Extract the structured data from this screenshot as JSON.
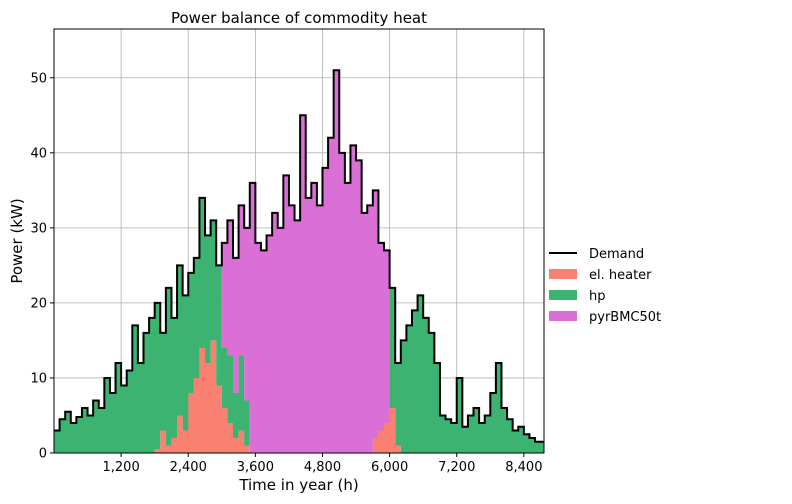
{
  "chart_data": {
    "type": "area",
    "title": "Power balance of commodity heat",
    "xlabel": "Time in year (h)",
    "ylabel": "Power (kW)",
    "xlim": [
      0,
      8760
    ],
    "ylim": [
      0,
      56.5
    ],
    "xticks": [
      1200,
      2400,
      3600,
      4800,
      6000,
      7200,
      8400
    ],
    "xtick_labels": [
      "1,200",
      "2,400",
      "3,600",
      "4,800",
      "6,000",
      "7,200",
      "8,400"
    ],
    "yticks": [
      0,
      10,
      20,
      30,
      40,
      50
    ],
    "ytick_labels": [
      "0",
      "10",
      "20",
      "30",
      "40",
      "50"
    ],
    "grid": true,
    "legend_position": "right",
    "colors": {
      "Demand": "#000000",
      "el. heater": "#fa8072",
      "hp": "#3cb371",
      "pyrBMC50t": "#da70d6"
    },
    "x": [
      0,
      100,
      200,
      300,
      400,
      500,
      600,
      700,
      800,
      900,
      1000,
      1100,
      1200,
      1300,
      1400,
      1500,
      1600,
      1700,
      1800,
      1900,
      2000,
      2100,
      2200,
      2300,
      2400,
      2500,
      2600,
      2700,
      2800,
      2900,
      3000,
      3100,
      3200,
      3300,
      3400,
      3500,
      3600,
      3700,
      3800,
      3900,
      4000,
      4100,
      4200,
      4300,
      4400,
      4500,
      4600,
      4700,
      4800,
      4900,
      5000,
      5100,
      5200,
      5300,
      5400,
      5500,
      5600,
      5700,
      5800,
      5900,
      6000,
      6100,
      6200,
      6300,
      6400,
      6500,
      6600,
      6700,
      6800,
      6900,
      7000,
      7100,
      7200,
      7300,
      7400,
      7500,
      7600,
      7700,
      7800,
      7900,
      8000,
      8100,
      8200,
      8300,
      8400,
      8500,
      8600,
      8700
    ],
    "series": [
      {
        "name": "Demand",
        "kind": "line",
        "values": [
          3,
          4.5,
          5.5,
          4,
          4.8,
          6,
          5,
          7,
          6,
          10,
          8,
          12,
          9,
          11,
          17,
          12,
          16,
          18,
          20,
          16,
          22,
          18,
          25,
          21,
          24,
          26,
          34,
          29,
          31,
          25,
          28,
          31,
          26,
          33,
          30,
          36,
          28,
          27,
          29,
          32,
          30,
          37,
          33,
          31,
          45,
          34,
          36,
          33,
          38,
          42,
          51,
          40,
          36,
          41,
          39,
          32,
          33,
          35,
          28,
          27,
          22,
          12,
          15,
          17,
          19,
          21,
          18,
          16,
          12,
          5,
          4.5,
          4,
          10,
          3.5,
          5,
          6,
          4,
          5,
          8,
          12,
          6,
          4.5,
          3,
          3.5,
          2.5,
          2,
          1.5,
          1.5
        ]
      },
      {
        "name": "el. heater",
        "kind": "area",
        "values": [
          0,
          0,
          0,
          0,
          0,
          0,
          0,
          0,
          0,
          0,
          0,
          0,
          0,
          0,
          0,
          0,
          0,
          0,
          0.5,
          3,
          1,
          2,
          5,
          3,
          8,
          10,
          14,
          12,
          15,
          9,
          6,
          4,
          2,
          3,
          1,
          0,
          0,
          0,
          0,
          0,
          0,
          0,
          0,
          0,
          0,
          0,
          0,
          0,
          0,
          0,
          0,
          0,
          0,
          0,
          0,
          0,
          0,
          2,
          3,
          4,
          6,
          1,
          0,
          0,
          0,
          0,
          0,
          0,
          0,
          0,
          0,
          0,
          0,
          0,
          0,
          0,
          0,
          0,
          0,
          0,
          0,
          0,
          0,
          0,
          0,
          0,
          0,
          0
        ]
      },
      {
        "name": "hp",
        "kind": "area",
        "values": [
          3,
          4.5,
          5.5,
          4,
          4.8,
          6,
          5,
          7,
          6,
          10,
          8,
          12,
          9,
          11,
          17,
          12,
          16,
          18,
          19.5,
          13,
          21,
          16,
          20,
          18,
          16,
          16,
          20,
          17,
          16,
          16,
          8,
          9,
          6,
          10,
          6,
          0,
          0,
          0,
          0,
          0,
          0,
          0,
          0,
          0,
          0,
          0,
          0,
          0,
          0,
          0,
          0,
          0,
          0,
          0,
          0,
          0,
          0,
          0,
          0,
          0,
          16,
          11,
          15,
          17,
          19,
          21,
          18,
          16,
          12,
          5,
          4.5,
          4,
          10,
          3.5,
          5,
          6,
          4,
          5,
          8,
          12,
          6,
          4.5,
          3,
          3.5,
          2.5,
          2,
          1.5,
          1.5
        ]
      },
      {
        "name": "pyrBMC50t",
        "kind": "area",
        "values": [
          0,
          0,
          0,
          0,
          0,
          0,
          0,
          0,
          0,
          0,
          0,
          0,
          0,
          0,
          0,
          0,
          0,
          0,
          0,
          0,
          0,
          0,
          0,
          0,
          0,
          0,
          0,
          0,
          0,
          0,
          14,
          18,
          18,
          20,
          23,
          36,
          28,
          27,
          29,
          32,
          30,
          37,
          33,
          31,
          45,
          34,
          36,
          33,
          38,
          42,
          51,
          40,
          36,
          41,
          39,
          32,
          33,
          33,
          25,
          23,
          0,
          0,
          0,
          0,
          0,
          0,
          0,
          0,
          0,
          0,
          0,
          0,
          0,
          0,
          0,
          0,
          0,
          0,
          0,
          0,
          0,
          0,
          0,
          0,
          0,
          0,
          0,
          0
        ]
      }
    ]
  }
}
